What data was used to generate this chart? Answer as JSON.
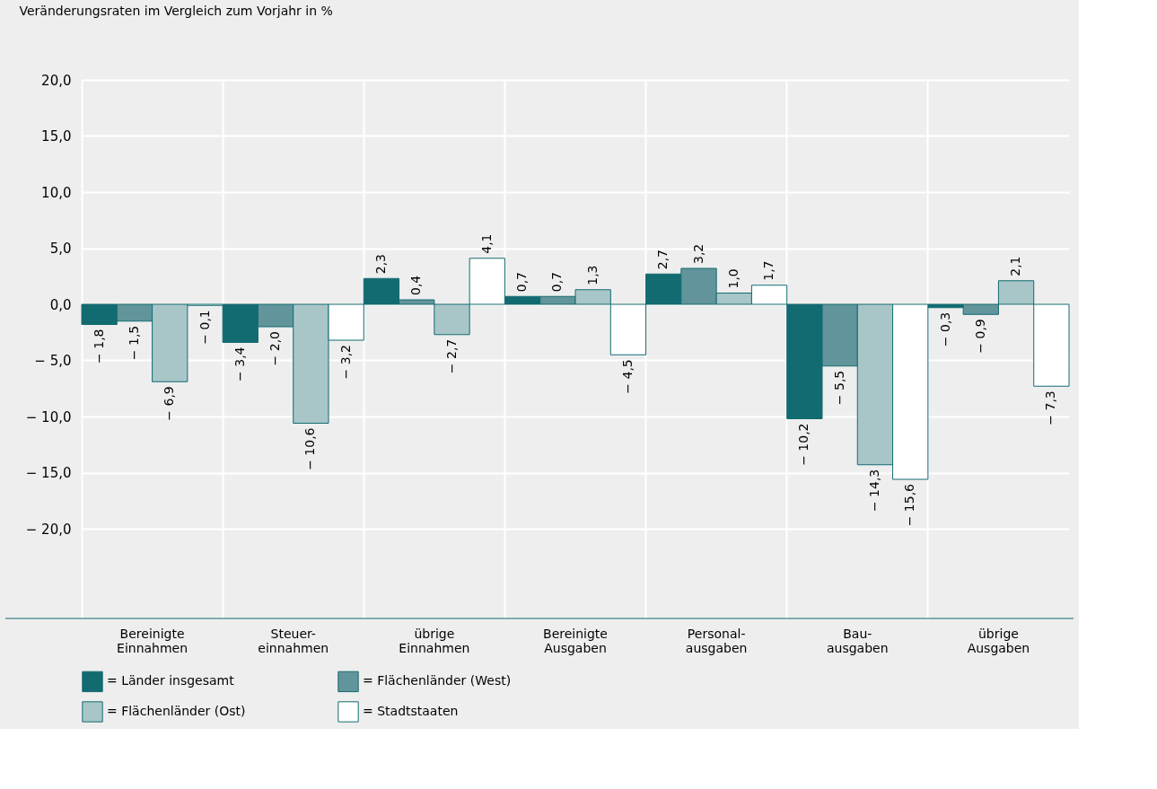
{
  "chart_data": {
    "type": "bar",
    "ylabel": "Veränderungsraten im Vergleich zum Vorjahr in %",
    "categories": [
      "Bereinigte\nEinnahmen",
      "Steuer-\neinnahmen",
      "übrige\nEinnahmen",
      "Bereinigte\nAusgaben",
      "Personal-\nausgaben",
      "Bau-\nausgaben",
      "übrige\nAusgaben"
    ],
    "series": [
      {
        "name": "= Länder insgesamt",
        "color": "#126b71",
        "values": [
          -1.8,
          -3.4,
          2.3,
          0.7,
          2.7,
          -10.2,
          -0.3
        ],
        "value_labels": [
          "− 1,8",
          "− 3,4",
          "2,3",
          "0,7",
          "2,7",
          "− 10,2",
          "− 0,3"
        ]
      },
      {
        "name": "= Flächenländer (West)",
        "color": "#62959b",
        "values": [
          -1.5,
          -2.0,
          0.4,
          0.7,
          3.2,
          -5.5,
          -0.9
        ],
        "value_labels": [
          "− 1,5",
          "− 2,0",
          "0,4",
          "0,7",
          "3,2",
          "− 5,5",
          "− 0,9"
        ]
      },
      {
        "name": "= Flächenländer (Ost)",
        "color": "#a8c6c8",
        "values": [
          -6.9,
          -10.6,
          -2.7,
          1.3,
          1.0,
          -14.3,
          2.1
        ],
        "value_labels": [
          "− 6,9",
          "− 10,6",
          "− 2,7",
          "1,3",
          "1,0",
          "− 14,3",
          "2,1"
        ]
      },
      {
        "name": "= Stadtstaaten",
        "color": "#ffffff",
        "values": [
          -0.1,
          -3.2,
          4.1,
          -4.5,
          1.7,
          -15.6,
          -7.3
        ],
        "value_labels": [
          "− 0,1",
          "− 3,2",
          "4,1",
          "− 4,5",
          "1,7",
          "− 15,6",
          "− 7,3"
        ]
      }
    ],
    "ylim": [
      -28,
      20
    ],
    "yticks": [
      {
        "value": 20,
        "label": "20,0"
      },
      {
        "value": 15,
        "label": "15,0"
      },
      {
        "value": 10,
        "label": "10,0"
      },
      {
        "value": 5,
        "label": "5,0"
      },
      {
        "value": 0,
        "label": "0,0"
      },
      {
        "value": -5,
        "label": "− 5,0"
      },
      {
        "value": -10,
        "label": "− 10,0"
      },
      {
        "value": -15,
        "label": "− 15,0"
      },
      {
        "value": -20,
        "label": "− 20,0"
      }
    ],
    "grid": true,
    "legend": "bottom"
  }
}
